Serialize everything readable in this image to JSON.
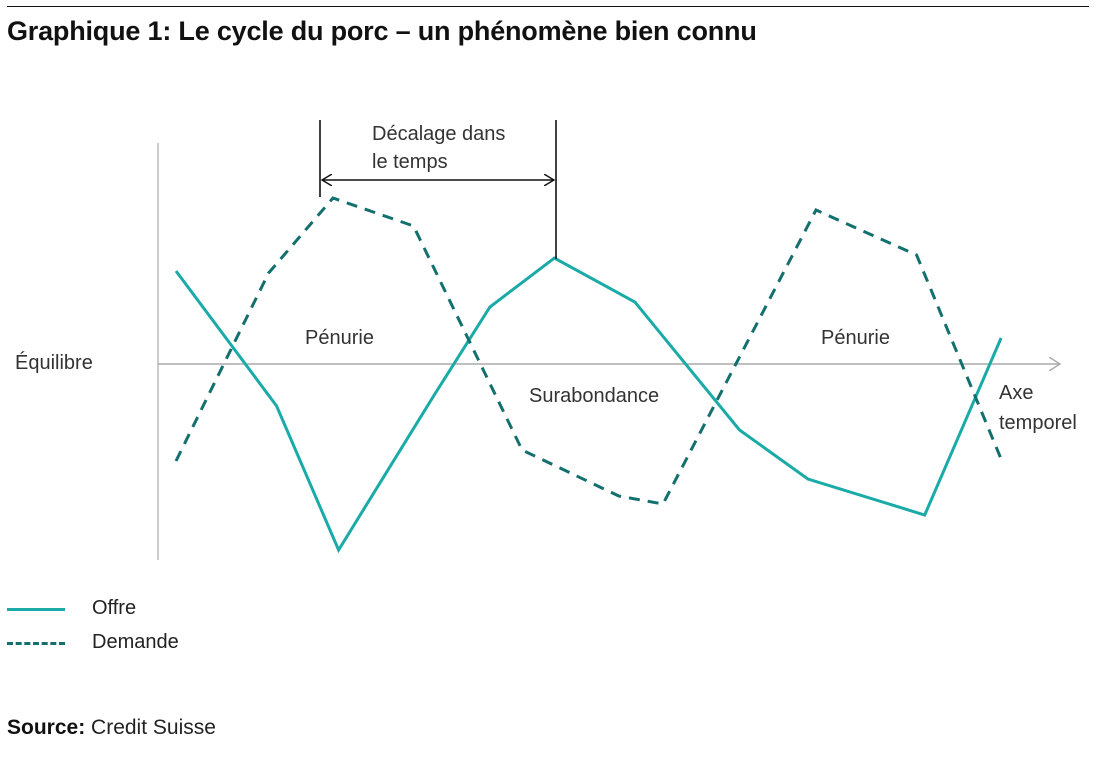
{
  "title": "Graphique 1: Le cycle du porc – un phénomène bien connu",
  "chart_data": {
    "type": "line",
    "title": "Graphique 1: Le cycle du porc – un phénomène bien connu",
    "x": [
      0,
      1,
      2,
      3,
      4,
      5,
      6,
      7,
      8,
      9,
      10
    ],
    "series": [
      {
        "name": "Offre",
        "style": "solid",
        "color": "#1aaba8",
        "x": [
          0,
          1.25,
          2.02,
          3.2,
          3.9,
          4.7,
          5.7,
          7.0,
          7.85,
          9.3,
          10.25
        ],
        "values": [
          0.93,
          -0.42,
          -1.86,
          -0.32,
          0.57,
          1.06,
          0.62,
          -0.66,
          -1.15,
          -1.51,
          0.26
        ]
      },
      {
        "name": "Demande",
        "style": "dashed",
        "color": "#13706e",
        "x": [
          0,
          1.15,
          1.95,
          2.95,
          4.3,
          5.5,
          6.05,
          7.95,
          9.2,
          10.25
        ],
        "values": [
          -0.97,
          0.91,
          1.66,
          1.38,
          -0.86,
          -1.32,
          -1.4,
          1.54,
          1.09,
          -0.95
        ]
      }
    ],
    "ylabel": "Équilibre",
    "xlabel_lines": [
      "Axe",
      "temporel"
    ],
    "y_range": [
      -2,
      2.2
    ],
    "x_range": [
      0,
      10.8
    ],
    "annotations": {
      "lag_label_lines": [
        "Décalage dans",
        "le temps"
      ],
      "shortage_left": "Pénurie",
      "surplus": "Surabondance",
      "shortage_right": "Pénurie"
    },
    "legend": {
      "position": "bottom-left",
      "items": [
        "Offre",
        "Demande"
      ]
    }
  },
  "source_label": "Source:",
  "source_text": "Credit Suisse"
}
